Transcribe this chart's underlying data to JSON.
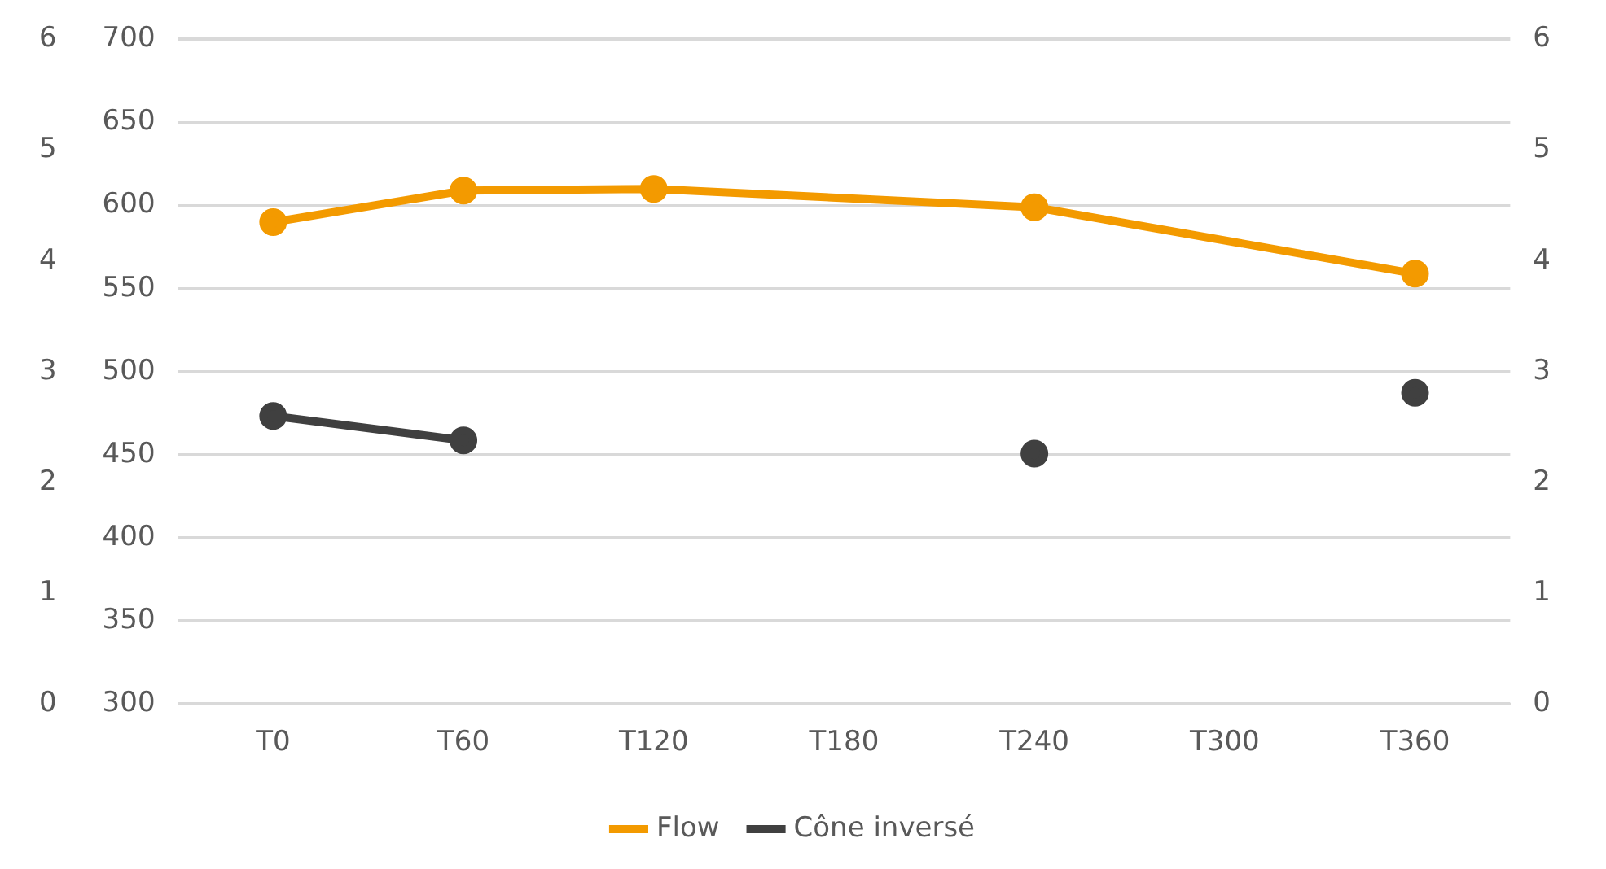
{
  "chart_data": {
    "type": "line",
    "categories": [
      "T0",
      "T60",
      "T120",
      "T180",
      "T240",
      "T300",
      "T360"
    ],
    "series": [
      {
        "name": "Flow",
        "color": "#f39a00",
        "x": [
          "T0",
          "T60",
          "T120",
          "T240",
          "T360"
        ],
        "values": [
          590,
          609,
          610,
          599,
          559
        ]
      },
      {
        "name": "Cône inversé",
        "color": "#404040",
        "axis": "y2",
        "values": [
          2.6,
          2.38,
          null,
          null,
          2.26,
          null,
          2.81
        ]
      }
    ],
    "ylim": [
      300,
      700
    ],
    "yticks": [
      300,
      350,
      400,
      450,
      500,
      550,
      600,
      650,
      700
    ],
    "y2lim": [
      0,
      6
    ],
    "y2ticks": [
      0,
      1,
      2,
      3,
      4,
      5,
      6
    ],
    "y3lim": [
      0,
      6
    ],
    "y3ticks": [
      0,
      1,
      2,
      3,
      4,
      5,
      6
    ],
    "grid": "y",
    "legend": "bottom",
    "marker": "circle",
    "line_style": "solid"
  }
}
